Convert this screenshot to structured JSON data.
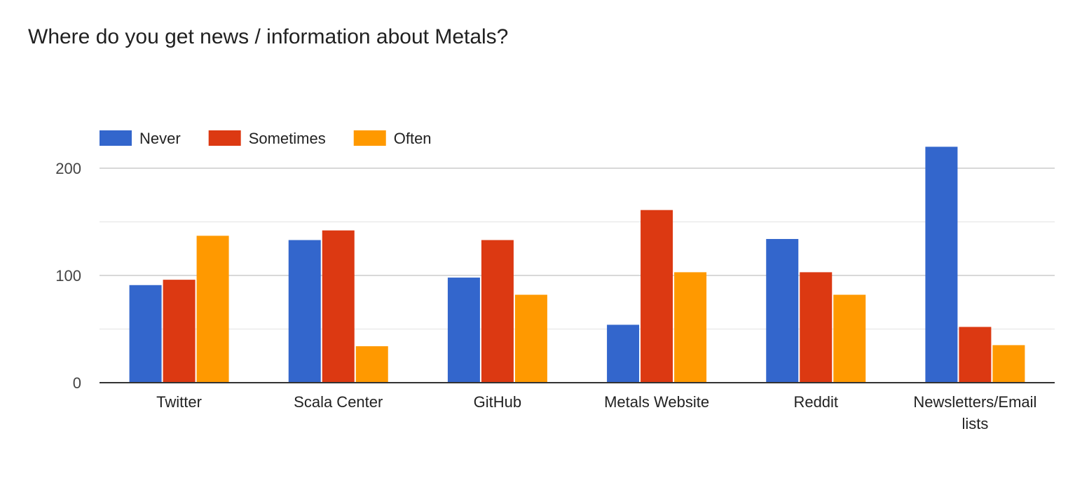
{
  "chart_data": {
    "type": "bar",
    "title": "Where do you get news / information about Metals?",
    "categories": [
      "Twitter",
      "Scala Center",
      "GitHub",
      "Metals Website",
      "Reddit",
      "Newsletters/Email lists"
    ],
    "category_lines": [
      [
        "Twitter"
      ],
      [
        "Scala Center"
      ],
      [
        "GitHub"
      ],
      [
        "Metals Website"
      ],
      [
        "Reddit"
      ],
      [
        "Newsletters/Email",
        "lists"
      ]
    ],
    "series": [
      {
        "name": "Never",
        "color": "#3366cc",
        "values": [
          91,
          133,
          98,
          54,
          134,
          220
        ]
      },
      {
        "name": "Sometimes",
        "color": "#dc3912",
        "values": [
          96,
          142,
          133,
          161,
          103,
          52
        ]
      },
      {
        "name": "Often",
        "color": "#ff9900",
        "values": [
          137,
          34,
          82,
          103,
          82,
          35
        ]
      }
    ],
    "ylim": [
      0,
      200
    ],
    "yticks": [
      0,
      100,
      200
    ],
    "minor_gridlines": [
      50,
      150
    ],
    "legend_position": "top-left",
    "xlabel": "",
    "ylabel": "",
    "grid": true
  }
}
